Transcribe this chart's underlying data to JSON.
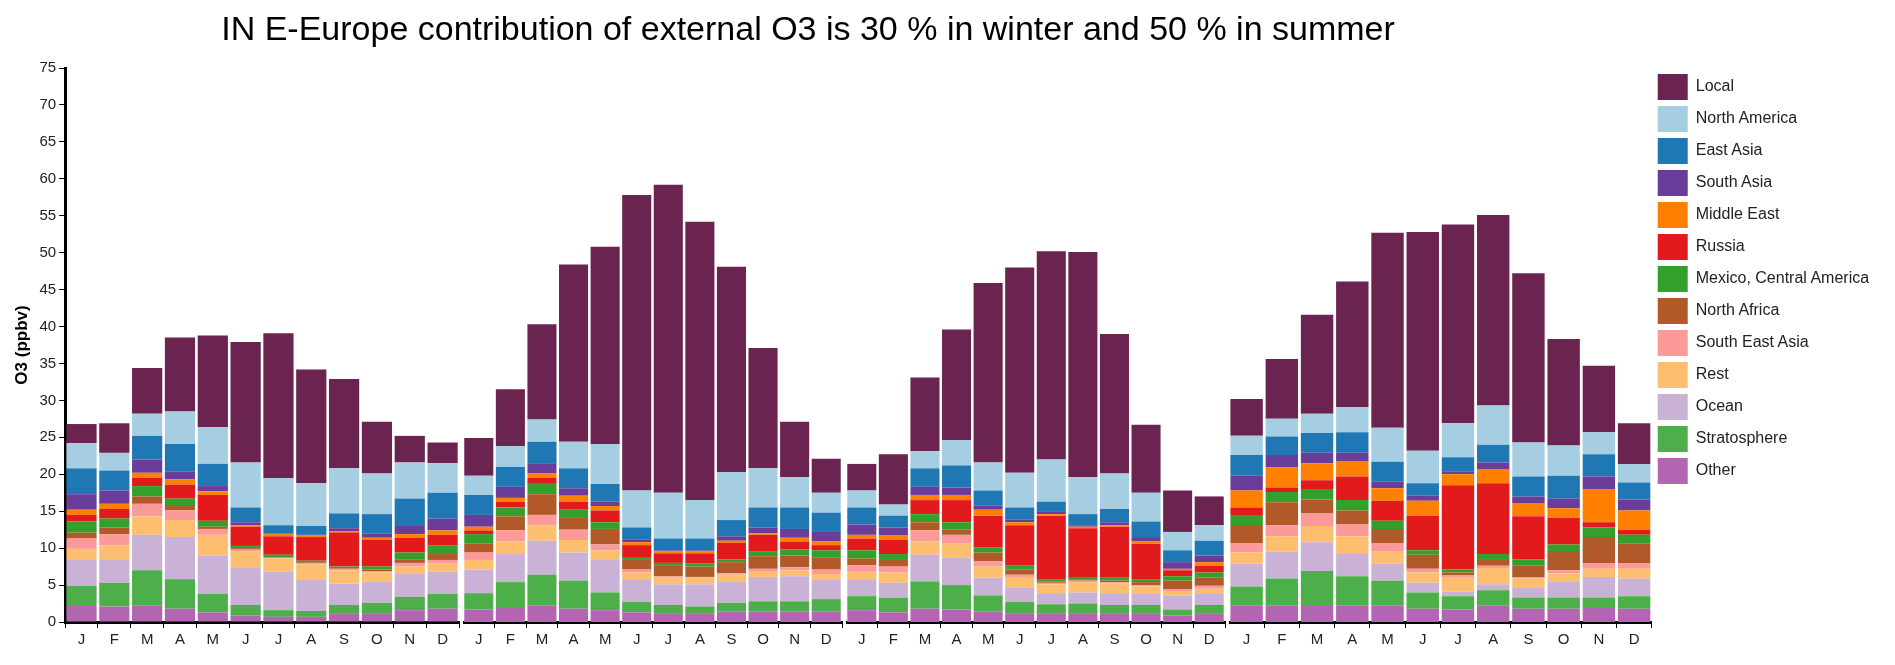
{
  "chart_data": [
    {
      "type": "bar",
      "stacked": true,
      "title": "IN E-Europe contribution of external O3 is 30 % in winter and 50 % in summer",
      "ylabel": "O3 (ppbv)",
      "ylim": [
        0,
        75
      ],
      "yticks": [
        0,
        5,
        10,
        15,
        20,
        25,
        30,
        35,
        40,
        45,
        50,
        55,
        60,
        65,
        70,
        75
      ],
      "categories": [
        "J",
        "F",
        "M",
        "A",
        "M",
        "J",
        "J",
        "A",
        "S",
        "O",
        "N",
        "D"
      ],
      "series": [
        {
          "color": "#b266b2",
          "values": [
            2.3,
            2.1,
            2.2,
            1.8,
            1.3,
            0.9,
            0.7,
            0.7,
            1.1,
            1.2,
            1.6,
            1.8
          ]
        },
        {
          "color": "#4daf4a",
          "values": [
            2.6,
            3.2,
            4.8,
            4.0,
            2.5,
            1.4,
            0.9,
            0.8,
            1.2,
            1.4,
            1.8,
            2.0
          ]
        },
        {
          "color": "#cab2d6",
          "values": [
            3.5,
            3.2,
            4.8,
            5.7,
            5.2,
            5.1,
            5.2,
            4.2,
            2.9,
            2.8,
            3.1,
            3.0
          ]
        },
        {
          "color": "#fdbf6f",
          "values": [
            1.5,
            1.9,
            2.5,
            2.3,
            2.8,
            2.2,
            1.8,
            2.1,
            1.8,
            1.3,
            1.0,
            1.1
          ]
        },
        {
          "color": "#fb9a99",
          "values": [
            1.4,
            1.5,
            1.7,
            1.3,
            0.8,
            0.2,
            0.1,
            0.2,
            0.2,
            0.2,
            0.5,
            0.5
          ]
        },
        {
          "color": "#b15928",
          "values": [
            0.8,
            0.9,
            1.0,
            0.6,
            0.3,
            0.2,
            0.1,
            0.1,
            0.1,
            0.2,
            0.5,
            0.8
          ]
        },
        {
          "color": "#33a02c",
          "values": [
            1.5,
            1.2,
            1.4,
            1.0,
            0.8,
            0.3,
            0.3,
            0.2,
            0.2,
            0.4,
            0.9,
            1.2
          ]
        },
        {
          "color": "#e31a1c",
          "values": [
            0.9,
            1.3,
            1.1,
            1.9,
            3.5,
            2.6,
            2.5,
            3.2,
            4.6,
            3.6,
            2.0,
            1.4
          ]
        },
        {
          "color": "#ff7f00",
          "values": [
            0.7,
            0.7,
            0.7,
            0.7,
            0.5,
            0.2,
            0.3,
            0.2,
            0.2,
            0.3,
            0.5,
            0.6
          ]
        },
        {
          "color": "#6a3d9a",
          "values": [
            2.1,
            1.8,
            1.8,
            1.1,
            0.7,
            0.4,
            0.1,
            0.1,
            0.4,
            0.6,
            1.1,
            1.6
          ]
        },
        {
          "color": "#1f78b4",
          "values": [
            3.5,
            2.7,
            3.2,
            3.7,
            3.0,
            2.0,
            1.1,
            1.2,
            2.0,
            2.6,
            3.7,
            3.5
          ]
        },
        {
          "color": "#a6cee3",
          "values": [
            3.4,
            2.4,
            3.0,
            4.4,
            5.0,
            6.1,
            6.4,
            5.8,
            6.1,
            5.5,
            4.9,
            4.0
          ]
        },
        {
          "color": "#6b2350",
          "values": [
            2.6,
            4.0,
            6.2,
            10.0,
            12.4,
            16.3,
            19.6,
            15.4,
            12.1,
            7.0,
            3.6,
            2.8
          ]
        }
      ]
    },
    {
      "type": "bar",
      "stacked": true,
      "ylim": [
        0,
        75
      ],
      "tick_labels": "x",
      "categories": [
        "J",
        "F",
        "M",
        "A",
        "M",
        "J",
        "J",
        "A",
        "S",
        "O",
        "N",
        "D"
      ],
      "series": [
        {
          "color": "#b266b2",
          "values": [
            1.7,
            1.9,
            2.2,
            1.8,
            1.6,
            1.3,
            1.2,
            1.1,
            1.4,
            1.4,
            1.4,
            1.4
          ]
        },
        {
          "color": "#4daf4a",
          "values": [
            2.2,
            3.5,
            4.2,
            3.8,
            2.4,
            1.4,
            1.1,
            1.0,
            1.2,
            1.4,
            1.4,
            1.7
          ]
        },
        {
          "color": "#cab2d6",
          "values": [
            3.2,
            3.8,
            4.6,
            3.8,
            4.4,
            3.1,
            2.8,
            3.0,
            2.8,
            3.3,
            3.4,
            2.6
          ]
        },
        {
          "color": "#fdbf6f",
          "values": [
            1.3,
            1.7,
            2.1,
            1.7,
            1.3,
            0.9,
            0.9,
            0.9,
            1.0,
            0.7,
            0.8,
            0.8
          ]
        },
        {
          "color": "#fb9a99",
          "values": [
            1.0,
            1.5,
            1.4,
            1.4,
            0.8,
            0.4,
            0.2,
            0.1,
            0.2,
            0.4,
            0.4,
            0.6
          ]
        },
        {
          "color": "#b15928",
          "values": [
            1.2,
            1.9,
            2.8,
            1.7,
            2.1,
            1.3,
            1.4,
            1.4,
            1.5,
            1.7,
            1.6,
            1.6
          ]
        },
        {
          "color": "#33a02c",
          "values": [
            1.3,
            1.2,
            1.4,
            1.0,
            0.9,
            0.4,
            0.4,
            0.4,
            0.4,
            0.7,
            0.8,
            1.0
          ]
        },
        {
          "color": "#e31a1c",
          "values": [
            0.5,
            0.8,
            0.8,
            1.1,
            1.6,
            1.6,
            1.3,
            1.4,
            2.2,
            2.2,
            1.1,
            0.7
          ]
        },
        {
          "color": "#ff7f00",
          "values": [
            0.5,
            0.5,
            0.6,
            0.8,
            0.6,
            0.4,
            0.3,
            0.3,
            0.3,
            0.2,
            0.5,
            0.5
          ]
        },
        {
          "color": "#6a3d9a",
          "values": [
            1.6,
            1.5,
            1.4,
            1.0,
            0.6,
            0.4,
            0.1,
            0.1,
            0.6,
            0.8,
            1.2,
            1.4
          ]
        },
        {
          "color": "#1f78b4",
          "values": [
            2.7,
            2.7,
            2.9,
            2.7,
            2.4,
            1.6,
            1.6,
            1.6,
            2.2,
            2.7,
            2.9,
            2.5
          ]
        },
        {
          "color": "#a6cee3",
          "values": [
            2.6,
            2.8,
            3.0,
            3.6,
            5.4,
            5.0,
            6.2,
            5.2,
            6.5,
            5.3,
            4.1,
            2.7
          ]
        },
        {
          "color": "#6b2350",
          "values": [
            5.1,
            7.7,
            12.9,
            24.0,
            26.7,
            40.0,
            41.7,
            37.7,
            27.8,
            16.3,
            7.5,
            4.6
          ]
        }
      ]
    },
    {
      "type": "bar",
      "stacked": true,
      "ylim": [
        0,
        75
      ],
      "tick_labels": "x",
      "categories": [
        "J",
        "F",
        "M",
        "A",
        "M",
        "J",
        "J",
        "A",
        "S",
        "O",
        "N",
        "D"
      ],
      "series": [
        {
          "color": "#b266b2",
          "values": [
            1.6,
            1.3,
            1.8,
            1.7,
            1.4,
            1.2,
            1.2,
            1.2,
            1.2,
            1.1,
            0.9,
            1.1
          ]
        },
        {
          "color": "#4daf4a",
          "values": [
            1.9,
            2.0,
            3.7,
            3.3,
            2.2,
            1.5,
            1.2,
            1.3,
            1.1,
            1.2,
            0.8,
            1.2
          ]
        },
        {
          "color": "#cab2d6",
          "values": [
            2.3,
            2.0,
            3.6,
            3.7,
            2.4,
            2.0,
            1.5,
            1.5,
            1.6,
            1.5,
            1.9,
            1.6
          ]
        },
        {
          "color": "#fdbf6f",
          "values": [
            1.0,
            1.4,
            1.8,
            1.9,
            1.5,
            1.4,
            1.2,
            1.4,
            1.3,
            1.0,
            0.5,
            0.6
          ]
        },
        {
          "color": "#fb9a99",
          "values": [
            0.9,
            0.8,
            1.5,
            1.2,
            0.7,
            0.3,
            0.2,
            0.2,
            0.2,
            0.2,
            0.3,
            0.4
          ]
        },
        {
          "color": "#b15928",
          "values": [
            0.9,
            0.9,
            1.1,
            0.7,
            1.2,
            0.7,
            0.2,
            0.2,
            0.2,
            0.4,
            1.2,
            1.1
          ]
        },
        {
          "color": "#33a02c",
          "values": [
            1.1,
            0.8,
            1.1,
            1.0,
            0.7,
            0.5,
            0.3,
            0.3,
            0.4,
            0.4,
            0.6,
            0.7
          ]
        },
        {
          "color": "#e31a1c",
          "values": [
            1.6,
            1.9,
            1.9,
            3.0,
            4.3,
            5.5,
            8.6,
            6.6,
            6.9,
            4.8,
            0.8,
            0.9
          ]
        },
        {
          "color": "#ff7f00",
          "values": [
            0.5,
            0.6,
            0.7,
            0.7,
            0.8,
            0.4,
            0.2,
            0.2,
            0.2,
            0.3,
            0.2,
            0.5
          ]
        },
        {
          "color": "#6a3d9a",
          "values": [
            1.4,
            1.1,
            1.1,
            1.0,
            0.6,
            0.4,
            0.3,
            0.2,
            0.4,
            0.6,
            0.9,
            0.9
          ]
        },
        {
          "color": "#1f78b4",
          "values": [
            2.3,
            1.6,
            2.5,
            3.0,
            2.0,
            1.6,
            1.4,
            1.5,
            1.8,
            2.1,
            1.6,
            2.0
          ]
        },
        {
          "color": "#a6cee3",
          "values": [
            2.3,
            1.5,
            2.3,
            3.4,
            3.8,
            4.7,
            5.7,
            5.0,
            4.8,
            3.9,
            2.5,
            2.1
          ]
        },
        {
          "color": "#6b2350",
          "values": [
            3.6,
            6.8,
            10.0,
            15.0,
            24.3,
            27.8,
            28.2,
            30.5,
            18.9,
            9.2,
            5.6,
            3.9
          ]
        }
      ]
    },
    {
      "type": "bar",
      "stacked": true,
      "ylim": [
        0,
        75
      ],
      "tick_labels": "x",
      "legend": "top right",
      "categories": [
        "J",
        "F",
        "M",
        "A",
        "M",
        "J",
        "J",
        "A",
        "S",
        "O",
        "N",
        "D"
      ],
      "series": [
        {
          "name": "Other",
          "color": "#b266b2",
          "values": [
            2.2,
            2.2,
            2.3,
            2.2,
            2.2,
            1.8,
            1.7,
            2.2,
            1.8,
            1.8,
            1.9,
            1.8
          ]
        },
        {
          "name": "Stratosphere",
          "color": "#4daf4a",
          "values": [
            2.6,
            3.7,
            4.6,
            4.0,
            3.4,
            2.2,
            1.8,
            2.1,
            1.5,
            1.5,
            1.4,
            1.7
          ]
        },
        {
          "name": "Ocean",
          "color": "#cab2d6",
          "values": [
            3.1,
            3.6,
            3.9,
            3.0,
            2.3,
            1.3,
            0.6,
            0.8,
            1.3,
            2.2,
            2.8,
            2.4
          ]
        },
        {
          "name": "Rest",
          "color": "#fdbf6f",
          "values": [
            1.5,
            2.1,
            2.2,
            2.4,
            1.6,
            1.4,
            2.0,
            2.2,
            1.3,
            1.1,
            1.1,
            1.3
          ]
        },
        {
          "name": "South East Asia",
          "color": "#fb9a99",
          "values": [
            1.3,
            1.5,
            1.7,
            1.6,
            1.2,
            0.5,
            0.2,
            0.3,
            0.2,
            0.4,
            0.8,
            0.8
          ]
        },
        {
          "name": "North Africa",
          "color": "#b15928",
          "values": [
            2.3,
            3.1,
            1.9,
            1.9,
            1.9,
            1.9,
            0.4,
            0.8,
            1.5,
            2.6,
            3.5,
            2.6
          ]
        },
        {
          "name": "Mexico, Central America",
          "color": "#33a02c",
          "values": [
            1.5,
            1.4,
            1.4,
            1.4,
            1.1,
            0.6,
            0.4,
            0.8,
            0.9,
            0.9,
            1.3,
            1.2
          ]
        },
        {
          "name": "Russia",
          "color": "#e31a1c",
          "values": [
            1.0,
            0.6,
            1.2,
            3.2,
            2.7,
            4.7,
            11.4,
            9.6,
            5.8,
            3.6,
            0.7,
            0.7
          ]
        },
        {
          "name": "Middle East",
          "color": "#ff7f00",
          "values": [
            2.3,
            2.7,
            2.3,
            2.1,
            1.7,
            2.0,
            1.5,
            1.9,
            1.8,
            1.3,
            4.5,
            2.6
          ]
        },
        {
          "name": "South Asia",
          "color": "#6a3d9a",
          "values": [
            2.0,
            1.7,
            1.4,
            1.1,
            0.9,
            0.7,
            0.4,
            0.9,
            0.9,
            1.3,
            1.7,
            1.5
          ]
        },
        {
          "name": "East Asia",
          "color": "#1f78b4",
          "values": [
            2.8,
            2.5,
            2.7,
            2.8,
            2.7,
            1.7,
            1.9,
            2.4,
            2.7,
            3.1,
            3.0,
            2.3
          ]
        },
        {
          "name": "North America",
          "color": "#a6cee3",
          "values": [
            2.6,
            2.4,
            2.6,
            3.4,
            4.6,
            4.4,
            4.6,
            5.3,
            4.6,
            4.1,
            3.0,
            2.5
          ]
        },
        {
          "name": "Local",
          "color": "#6b2350",
          "values": [
            5.0,
            8.1,
            13.4,
            17.0,
            26.4,
            29.6,
            26.9,
            25.8,
            22.9,
            14.4,
            9.0,
            5.5
          ]
        }
      ]
    }
  ]
}
